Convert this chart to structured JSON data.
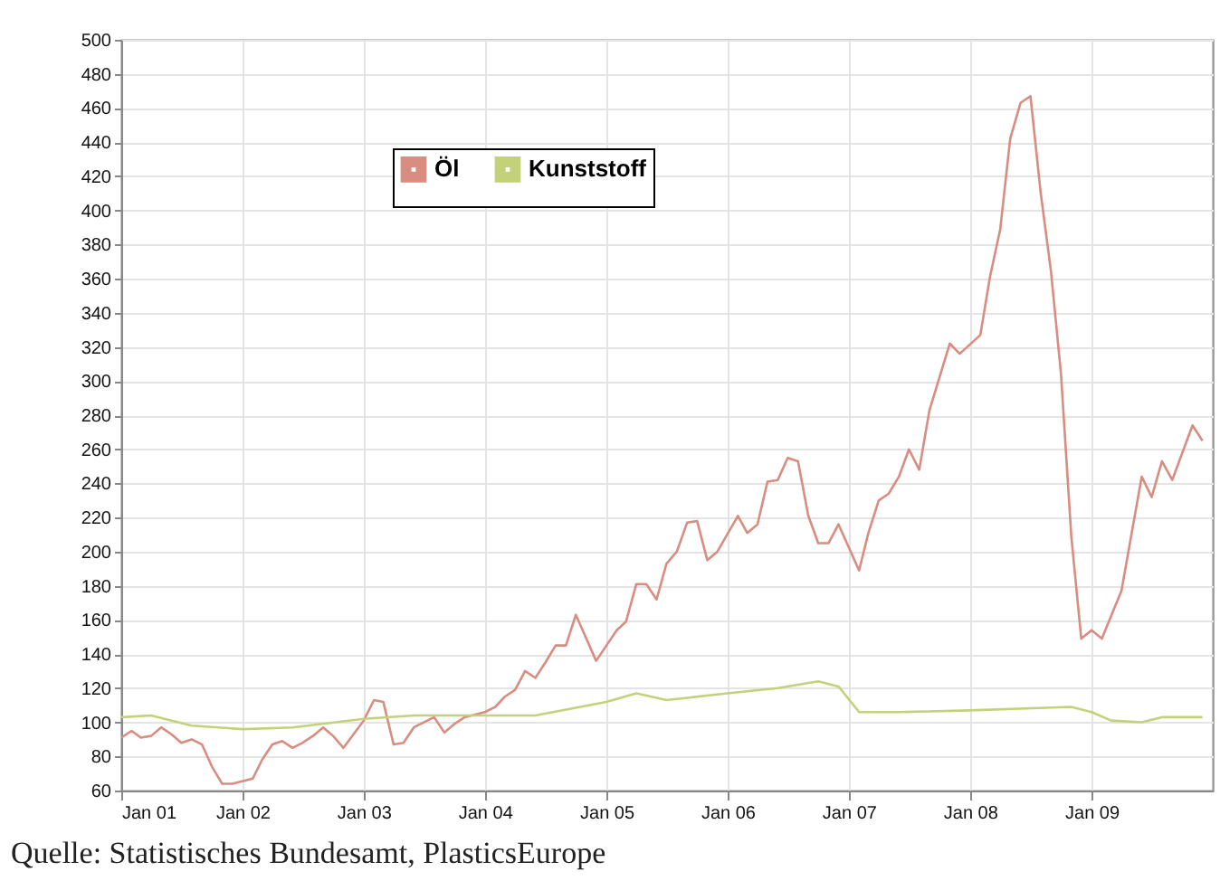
{
  "chart_data": {
    "type": "line",
    "x": [
      "2001-01",
      "2001-02",
      "2001-03",
      "2001-04",
      "2001-05",
      "2001-06",
      "2001-07",
      "2001-08",
      "2001-09",
      "2001-10",
      "2001-11",
      "2001-12",
      "2002-02",
      "2002-03",
      "2002-04",
      "2002-05",
      "2002-06",
      "2002-07",
      "2002-08",
      "2002-09",
      "2002-10",
      "2002-11",
      "2003-01",
      "2003-02",
      "2003-03",
      "2003-04",
      "2003-05",
      "2003-06",
      "2003-08",
      "2003-09",
      "2003-10",
      "2003-11",
      "2004-01",
      "2004-02",
      "2004-03",
      "2004-04",
      "2004-05",
      "2004-06",
      "2004-07",
      "2004-08",
      "2004-09",
      "2004-10",
      "2004-12",
      "2005-02",
      "2005-03",
      "2005-04",
      "2005-05",
      "2005-06",
      "2005-07",
      "2005-08",
      "2005-09",
      "2005-10",
      "2005-11",
      "2005-12",
      "2006-02",
      "2006-03",
      "2006-04",
      "2006-05",
      "2006-06",
      "2006-07",
      "2006-08",
      "2006-09",
      "2006-10",
      "2006-11",
      "2006-12",
      "2007-02",
      "2007-03",
      "2007-04",
      "2007-05",
      "2007-06",
      "2007-07",
      "2007-08",
      "2007-09",
      "2007-11",
      "2007-12",
      "2008-02",
      "2008-03",
      "2008-04",
      "2008-05",
      "2008-06",
      "2008-07",
      "2008-08",
      "2008-09",
      "2008-10",
      "2008-11",
      "2008-12",
      "2009-01",
      "2009-02",
      "2009-04",
      "2009-06",
      "2009-07",
      "2009-08",
      "2009-09",
      "2009-11",
      "2009-12"
    ],
    "series": [
      {
        "name": "Öl",
        "color": "#d98c80",
        "values": [
          91,
          95,
          91,
          92,
          97,
          93,
          88,
          90,
          87,
          74,
          64,
          64,
          67,
          78,
          87,
          89,
          85,
          88,
          92,
          97,
          92,
          85,
          101,
          113,
          112,
          87,
          88,
          97,
          103,
          94,
          99,
          103,
          106,
          109,
          115,
          119,
          130,
          126,
          135,
          145,
          145,
          163,
          136,
          154,
          159,
          181,
          181,
          172,
          193,
          200,
          217,
          218,
          195,
          200,
          221,
          211,
          216,
          241,
          242,
          255,
          253,
          221,
          205,
          205,
          216,
          189,
          211,
          230,
          234,
          244,
          260,
          248,
          283,
          322,
          316,
          327,
          361,
          389,
          442,
          463,
          467,
          410,
          364,
          304,
          209,
          149,
          154,
          149,
          177,
          244,
          232,
          253,
          242,
          274,
          265
        ]
      },
      {
        "name": "Kunststoff",
        "color": "#c3d27a",
        "x": [
          "2001-01",
          "2001-04",
          "2001-08",
          "2002-01",
          "2002-06",
          "2003-01",
          "2003-06",
          "2004-01",
          "2004-06",
          "2005-01",
          "2005-04",
          "2005-07",
          "2006-01",
          "2006-06",
          "2006-10",
          "2006-12",
          "2007-02",
          "2007-06",
          "2008-01",
          "2008-11",
          "2009-01",
          "2009-03",
          "2009-06",
          "2009-08",
          "2009-12"
        ],
        "values": [
          103,
          104,
          98,
          96,
          97,
          102,
          104,
          104,
          104,
          112,
          117,
          113,
          117,
          120,
          124,
          121,
          106,
          106,
          107,
          109,
          106,
          101,
          100,
          103,
          103
        ]
      }
    ],
    "xlim": [
      "2001-01",
      "2010-01"
    ],
    "xticks": [
      {
        "value": "2001-01",
        "label": "Jan 01"
      },
      {
        "value": "2002-01",
        "label": "Jan 02"
      },
      {
        "value": "2003-01",
        "label": "Jan 03"
      },
      {
        "value": "2004-01",
        "label": "Jan 04"
      },
      {
        "value": "2005-01",
        "label": "Jan 05"
      },
      {
        "value": "2006-01",
        "label": "Jan 06"
      },
      {
        "value": "2007-01",
        "label": "Jan 07"
      },
      {
        "value": "2008-01",
        "label": "Jan 08"
      },
      {
        "value": "2009-01",
        "label": "Jan 09"
      }
    ],
    "ylim": [
      60,
      500
    ],
    "yticks": [
      60,
      80,
      100,
      120,
      140,
      160,
      180,
      200,
      220,
      240,
      260,
      280,
      300,
      320,
      340,
      360,
      380,
      400,
      420,
      440,
      460,
      480,
      500
    ],
    "grid": true,
    "legend": "top left",
    "annotations": [
      "Quelle: Statistisches Bundesamt, PlasticsEurope"
    ]
  }
}
